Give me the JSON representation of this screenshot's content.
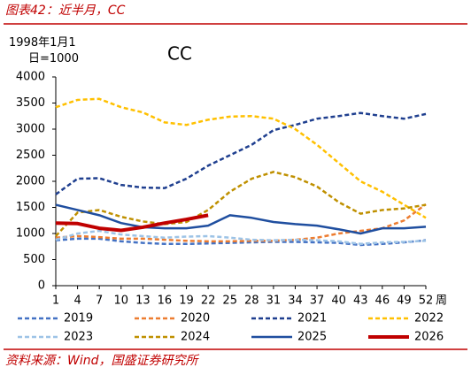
{
  "header": "图表42：近半月，CC",
  "source": "资料来源：Wind，国盛证券研究所",
  "chart_data": {
    "type": "line",
    "title": "CC",
    "y_label": "1998年1月1日=1000",
    "x_unit": "周",
    "x": [
      1,
      4,
      7,
      10,
      13,
      16,
      19,
      22,
      25,
      28,
      31,
      34,
      37,
      40,
      43,
      46,
      49,
      52
    ],
    "xlim": [
      1,
      52
    ],
    "xticks": [
      1,
      4,
      7,
      10,
      13,
      16,
      19,
      22,
      25,
      28,
      31,
      34,
      37,
      40,
      43,
      46,
      49,
      52
    ],
    "ylim": [
      0,
      4000
    ],
    "yticks": [
      0,
      500,
      1000,
      1500,
      2000,
      2500,
      3000,
      3500,
      4000
    ],
    "series": [
      {
        "name": "2019",
        "color": "#4472c4",
        "dashed": true,
        "values": [
          870,
          900,
          900,
          850,
          820,
          800,
          800,
          810,
          820,
          830,
          840,
          840,
          830,
          820,
          780,
          800,
          830,
          870
        ]
      },
      {
        "name": "2020",
        "color": "#ed7d31",
        "dashed": true,
        "values": [
          920,
          950,
          930,
          900,
          900,
          880,
          860,
          850,
          850,
          860,
          860,
          880,
          920,
          1000,
          1050,
          1100,
          1250,
          1560
        ]
      },
      {
        "name": "2021",
        "color": "#1f3f8f",
        "dashed": true,
        "values": [
          1750,
          2050,
          2060,
          1930,
          1880,
          1870,
          2050,
          2300,
          2500,
          2700,
          2980,
          3080,
          3200,
          3250,
          3310,
          3250,
          3200,
          3290
        ]
      },
      {
        "name": "2022",
        "color": "#ffc000",
        "dashed": true,
        "values": [
          3420,
          3560,
          3580,
          3420,
          3320,
          3130,
          3080,
          3180,
          3240,
          3250,
          3200,
          3000,
          2700,
          2350,
          2000,
          1800,
          1550,
          1300
        ]
      },
      {
        "name": "2023",
        "color": "#9dc3e6",
        "dashed": true,
        "values": [
          880,
          1000,
          1050,
          980,
          950,
          920,
          940,
          950,
          920,
          880,
          870,
          880,
          870,
          850,
          800,
          830,
          840,
          860
        ]
      },
      {
        "name": "2024",
        "color": "#bf9000",
        "dashed": true,
        "values": [
          950,
          1400,
          1450,
          1320,
          1230,
          1180,
          1220,
          1450,
          1800,
          2050,
          2180,
          2080,
          1900,
          1600,
          1380,
          1450,
          1480,
          1550
        ]
      },
      {
        "name": "2025",
        "color": "#1f4e9f",
        "dashed": false,
        "values": [
          1550,
          1450,
          1350,
          1200,
          1120,
          1100,
          1100,
          1150,
          1350,
          1300,
          1220,
          1180,
          1150,
          1080,
          1000,
          1100,
          1100,
          1130
        ]
      },
      {
        "name": "2026",
        "color": "#c00000",
        "dashed": false,
        "width": 4,
        "values": [
          1200,
          1190,
          1100,
          1060,
          1120,
          1200,
          1270,
          1350,
          null,
          null,
          null,
          null,
          null,
          null,
          null,
          null,
          null,
          null
        ]
      }
    ]
  }
}
